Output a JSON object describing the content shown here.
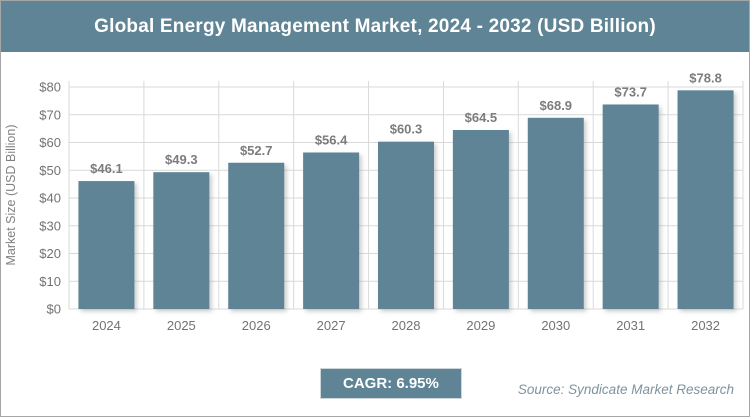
{
  "header": {
    "title": "Global Energy Management Market, 2024 - 2032 (USD Billion)"
  },
  "chart_data": {
    "type": "bar",
    "title": "Global Energy Management Market, 2024 - 2032 (USD Billion)",
    "categories": [
      "2024",
      "2025",
      "2026",
      "2027",
      "2028",
      "2029",
      "2030",
      "2031",
      "2032"
    ],
    "values": [
      46.1,
      49.3,
      52.7,
      56.4,
      60.3,
      64.5,
      68.9,
      73.7,
      78.8
    ],
    "data_labels": [
      "$46.1",
      "$49.3",
      "$52.7",
      "$56.4",
      "$60.3",
      "$64.5",
      "$68.9",
      "$73.7",
      "$78.8"
    ],
    "xlabel": "",
    "ylabel": "Market Size (USD Billion)",
    "ylim": [
      0,
      80
    ],
    "ytick_values": [
      0,
      10,
      20,
      30,
      40,
      50,
      60,
      70,
      80
    ],
    "ytick_labels": [
      "$0",
      "$10",
      "$20",
      "$30",
      "$40",
      "$50",
      "$60",
      "$70",
      "$80"
    ],
    "grid": true,
    "legend": false,
    "bar_color": "#5e8495",
    "gridline_color": "#d9d9d9"
  },
  "footer": {
    "cagr_label": "CAGR: 6.95%",
    "source": "Source: Syndicate Market Research"
  },
  "colors": {
    "accent_teal": "#5e8495",
    "page_background": "#ffffff",
    "outer_border": "#a6a6a6",
    "tick_text": "#737373",
    "data_label_text": "#7c7c7c",
    "source_text": "#7e939e"
  }
}
